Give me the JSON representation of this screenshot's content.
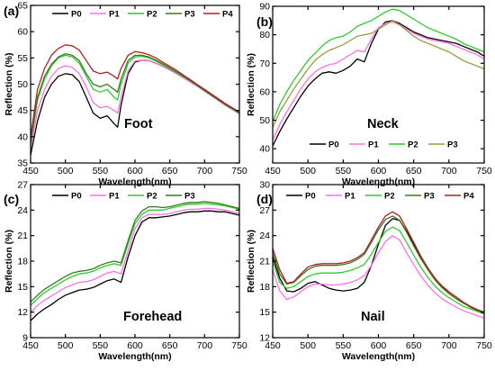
{
  "colors": {
    "P0": "#000000",
    "P1": "#ff6ee6",
    "P2": "#2ccc2c",
    "P3": "#3a7a1c",
    "P4": "#b02020",
    "P3_neck": "#9c9a3a"
  },
  "chart_data": [
    {
      "type": "line",
      "panel": "(a)",
      "region": "Foot",
      "xlabel": "Wavelength(nm)",
      "ylabel": "Reflection (%)",
      "xlim": [
        450,
        750
      ],
      "ylim": [
        35,
        65
      ],
      "xticks": [
        450,
        500,
        550,
        600,
        650,
        700,
        750
      ],
      "yticks": [
        35,
        40,
        45,
        50,
        55,
        60,
        65
      ],
      "legend": "top",
      "x": [
        450,
        460,
        470,
        480,
        490,
        500,
        510,
        520,
        530,
        540,
        550,
        560,
        570,
        575,
        580,
        590,
        600,
        610,
        620,
        630,
        640,
        650,
        660,
        670,
        680,
        690,
        700,
        710,
        720,
        730,
        740,
        750
      ],
      "series": [
        {
          "name": "P0",
          "values": [
            36.5,
            43.0,
            47.5,
            50.0,
            51.5,
            52.0,
            51.8,
            50.5,
            47.5,
            44.5,
            43.5,
            44.0,
            42.5,
            41.8,
            46.0,
            52.0,
            54.2,
            54.6,
            54.5,
            54.0,
            53.4,
            52.7,
            52.0,
            51.2,
            50.4,
            49.6,
            48.7,
            47.8,
            46.9,
            46.0,
            45.2,
            44.4
          ]
        },
        {
          "name": "P1",
          "values": [
            37.5,
            45.0,
            49.0,
            51.5,
            53.0,
            53.5,
            53.2,
            52.0,
            49.5,
            46.5,
            45.5,
            45.8,
            45.0,
            44.5,
            47.5,
            52.5,
            54.4,
            54.6,
            54.5,
            54.0,
            53.4,
            52.7,
            52.0,
            51.2,
            50.4,
            49.6,
            48.7,
            47.8,
            46.9,
            46.0,
            45.2,
            44.4
          ]
        },
        {
          "name": "P2",
          "values": [
            38.5,
            47.0,
            51.0,
            53.5,
            55.0,
            55.5,
            55.2,
            54.0,
            51.5,
            49.0,
            48.5,
            49.0,
            47.5,
            47.0,
            50.0,
            54.0,
            55.2,
            55.3,
            55.0,
            54.4,
            53.7,
            53.0,
            52.2,
            51.4,
            50.6,
            49.7,
            48.8,
            47.9,
            47.0,
            46.1,
            45.3,
            44.5
          ]
        },
        {
          "name": "P3",
          "values": [
            39.0,
            47.5,
            51.5,
            53.8,
            55.2,
            55.8,
            55.5,
            54.5,
            52.0,
            50.0,
            49.5,
            50.0,
            49.0,
            48.5,
            51.0,
            54.5,
            55.5,
            55.5,
            55.2,
            54.6,
            53.9,
            53.1,
            52.3,
            51.5,
            50.6,
            49.7,
            48.8,
            47.9,
            47.0,
            46.1,
            45.3,
            44.5
          ]
        },
        {
          "name": "P4",
          "values": [
            40.0,
            49.0,
            53.0,
            55.5,
            56.8,
            57.5,
            57.3,
            56.5,
            54.5,
            52.5,
            52.0,
            52.3,
            51.5,
            51.0,
            53.0,
            55.5,
            56.2,
            56.0,
            55.6,
            55.0,
            54.2,
            53.4,
            52.6,
            51.7,
            50.8,
            49.9,
            49.0,
            48.1,
            47.2,
            46.3,
            45.5,
            44.7
          ]
        }
      ]
    },
    {
      "type": "line",
      "panel": "(b)",
      "region": "Neck",
      "xlabel": "Wavelength(nm)",
      "ylabel": "Reflection (%)",
      "xlim": [
        450,
        750
      ],
      "ylim": [
        35,
        90
      ],
      "xticks": [
        450,
        500,
        550,
        600,
        650,
        700,
        750
      ],
      "yticks": [
        40,
        50,
        60,
        70,
        80,
        90
      ],
      "legend": "bottom",
      "x": [
        450,
        460,
        470,
        480,
        490,
        500,
        510,
        520,
        530,
        540,
        550,
        560,
        570,
        580,
        590,
        600,
        610,
        620,
        630,
        640,
        650,
        660,
        670,
        680,
        690,
        700,
        710,
        720,
        730,
        740,
        750
      ],
      "series": [
        {
          "name": "P0",
          "values": [
            41.0,
            46.0,
            50.5,
            54.5,
            58.5,
            62.0,
            64.5,
            66.5,
            67.0,
            66.5,
            67.5,
            69.0,
            71.5,
            70.5,
            77.0,
            82.0,
            84.5,
            85.0,
            84.0,
            82.5,
            81.0,
            80.0,
            79.0,
            78.5,
            78.0,
            77.5,
            77.0,
            76.0,
            75.0,
            74.0,
            72.5
          ]
        },
        {
          "name": "P1",
          "values": [
            43.0,
            48.5,
            53.0,
            57.0,
            61.0,
            64.5,
            67.0,
            68.5,
            69.5,
            70.0,
            71.5,
            73.0,
            74.5,
            74.0,
            78.5,
            82.5,
            84.0,
            84.5,
            83.5,
            82.0,
            80.5,
            79.5,
            78.5,
            78.0,
            77.5,
            77.0,
            76.0,
            75.0,
            74.0,
            73.0,
            71.5
          ]
        },
        {
          "name": "P2",
          "values": [
            49.5,
            55.5,
            60.0,
            64.0,
            67.5,
            71.0,
            73.5,
            76.0,
            78.0,
            79.0,
            79.5,
            81.0,
            83.0,
            84.0,
            85.0,
            86.5,
            88.0,
            89.0,
            88.5,
            87.0,
            85.5,
            84.0,
            82.5,
            81.5,
            80.5,
            79.5,
            78.5,
            77.0,
            76.0,
            75.0,
            74.0
          ]
        },
        {
          "name": "P3",
          "values": [
            47.5,
            53.0,
            57.0,
            61.0,
            64.5,
            68.0,
            71.0,
            73.0,
            74.5,
            75.5,
            76.5,
            78.0,
            79.5,
            80.0,
            80.5,
            82.0,
            83.5,
            85.0,
            83.5,
            81.5,
            79.5,
            78.0,
            77.0,
            76.0,
            75.0,
            74.0,
            72.5,
            71.0,
            70.0,
            69.0,
            68.0
          ]
        }
      ]
    },
    {
      "type": "line",
      "panel": "(c)",
      "region": "Forehead",
      "xlabel": "Wavelength(nm)",
      "ylabel": "Reflection (%)",
      "xlim": [
        450,
        750
      ],
      "ylim": [
        9,
        27
      ],
      "xticks": [
        450,
        500,
        550,
        600,
        650,
        700,
        750
      ],
      "yticks": [
        9,
        12,
        15,
        18,
        21,
        24,
        27
      ],
      "legend": "top",
      "x": [
        450,
        460,
        470,
        480,
        490,
        500,
        510,
        520,
        530,
        540,
        550,
        560,
        570,
        580,
        590,
        600,
        610,
        620,
        630,
        640,
        650,
        660,
        670,
        680,
        690,
        700,
        710,
        720,
        730,
        740,
        750
      ],
      "series": [
        {
          "name": "P0",
          "values": [
            11.0,
            11.8,
            12.4,
            12.9,
            13.5,
            14.0,
            14.3,
            14.6,
            14.7,
            14.9,
            15.3,
            15.7,
            15.9,
            15.5,
            18.5,
            21.0,
            22.6,
            23.1,
            23.1,
            23.2,
            23.3,
            23.5,
            23.7,
            23.8,
            23.8,
            23.9,
            23.9,
            23.8,
            23.8,
            23.6,
            23.4
          ]
        },
        {
          "name": "P1",
          "values": [
            12.0,
            12.8,
            13.4,
            13.9,
            14.4,
            14.9,
            15.2,
            15.5,
            15.6,
            15.8,
            16.2,
            16.6,
            16.8,
            16.5,
            19.2,
            21.8,
            23.1,
            23.5,
            23.5,
            23.5,
            23.6,
            23.8,
            24.0,
            24.1,
            24.1,
            24.2,
            24.2,
            24.1,
            24.0,
            23.8,
            23.6
          ]
        },
        {
          "name": "P2",
          "values": [
            12.8,
            13.6,
            14.3,
            14.8,
            15.3,
            15.8,
            16.2,
            16.5,
            16.6,
            16.8,
            17.2,
            17.5,
            17.7,
            17.5,
            20.0,
            22.4,
            23.5,
            24.0,
            24.0,
            24.0,
            24.2,
            24.4,
            24.6,
            24.7,
            24.7,
            24.8,
            24.7,
            24.6,
            24.5,
            24.3,
            24.1
          ]
        },
        {
          "name": "P3",
          "values": [
            13.2,
            14.0,
            14.7,
            15.2,
            15.7,
            16.2,
            16.6,
            16.8,
            16.9,
            17.1,
            17.5,
            17.8,
            18.0,
            17.8,
            20.4,
            22.8,
            23.9,
            24.4,
            24.4,
            24.3,
            24.4,
            24.6,
            24.8,
            24.9,
            24.9,
            25.0,
            24.9,
            24.8,
            24.6,
            24.4,
            24.2
          ]
        }
      ]
    },
    {
      "type": "line",
      "panel": "(d)",
      "region": "Nail",
      "xlabel": "Wavelength(nm)",
      "ylabel": "Reflection (%)",
      "xlim": [
        450,
        750
      ],
      "ylim": [
        12,
        30
      ],
      "xticks": [
        450,
        500,
        550,
        600,
        650,
        700,
        750
      ],
      "yticks": [
        12,
        15,
        18,
        21,
        24,
        27,
        30
      ],
      "legend": "top",
      "x": [
        450,
        460,
        470,
        480,
        490,
        500,
        510,
        520,
        530,
        540,
        550,
        560,
        570,
        580,
        590,
        600,
        610,
        620,
        630,
        640,
        650,
        660,
        670,
        680,
        690,
        700,
        710,
        720,
        730,
        740,
        750
      ],
      "series": [
        {
          "name": "P0",
          "values": [
            21.5,
            19.0,
            17.5,
            17.4,
            17.8,
            18.4,
            18.6,
            18.2,
            17.8,
            17.6,
            17.5,
            17.6,
            17.8,
            18.5,
            20.5,
            23.0,
            25.2,
            26.0,
            25.8,
            24.5,
            23.0,
            21.5,
            20.2,
            19.0,
            18.0,
            17.2,
            16.6,
            16.1,
            15.7,
            15.3,
            15.0
          ]
        },
        {
          "name": "P1",
          "values": [
            20.0,
            17.5,
            16.5,
            16.8,
            17.4,
            18.0,
            18.3,
            18.3,
            18.2,
            18.2,
            18.3,
            18.5,
            18.8,
            19.3,
            20.5,
            22.0,
            23.3,
            24.0,
            23.5,
            22.0,
            20.6,
            19.3,
            18.2,
            17.3,
            16.6,
            16.1,
            15.6,
            15.2,
            14.9,
            14.6,
            14.3
          ]
        },
        {
          "name": "P2",
          "values": [
            21.0,
            18.5,
            17.8,
            18.0,
            18.6,
            19.2,
            19.5,
            19.6,
            19.6,
            19.6,
            19.7,
            19.9,
            20.2,
            20.6,
            21.8,
            23.2,
            24.5,
            25.0,
            24.6,
            23.2,
            21.7,
            20.3,
            19.1,
            18.1,
            17.3,
            16.7,
            16.2,
            15.7,
            15.4,
            15.1,
            14.8
          ]
        },
        {
          "name": "P3",
          "values": [
            22.0,
            19.5,
            18.3,
            18.5,
            19.3,
            20.0,
            20.4,
            20.5,
            20.5,
            20.5,
            20.6,
            20.8,
            21.2,
            21.8,
            23.2,
            24.7,
            25.9,
            26.3,
            25.8,
            24.4,
            22.8,
            21.3,
            20.0,
            18.8,
            17.9,
            17.2,
            16.6,
            16.1,
            15.6,
            15.2,
            14.9
          ]
        },
        {
          "name": "P4",
          "values": [
            22.5,
            20.0,
            18.4,
            18.6,
            19.5,
            20.3,
            20.6,
            20.7,
            20.7,
            20.7,
            20.8,
            21.0,
            21.4,
            22.0,
            23.5,
            25.0,
            26.3,
            26.8,
            26.3,
            24.8,
            23.2,
            21.6,
            20.2,
            19.0,
            18.1,
            17.4,
            16.8,
            16.2,
            15.7,
            15.3,
            15.0
          ]
        }
      ]
    }
  ]
}
